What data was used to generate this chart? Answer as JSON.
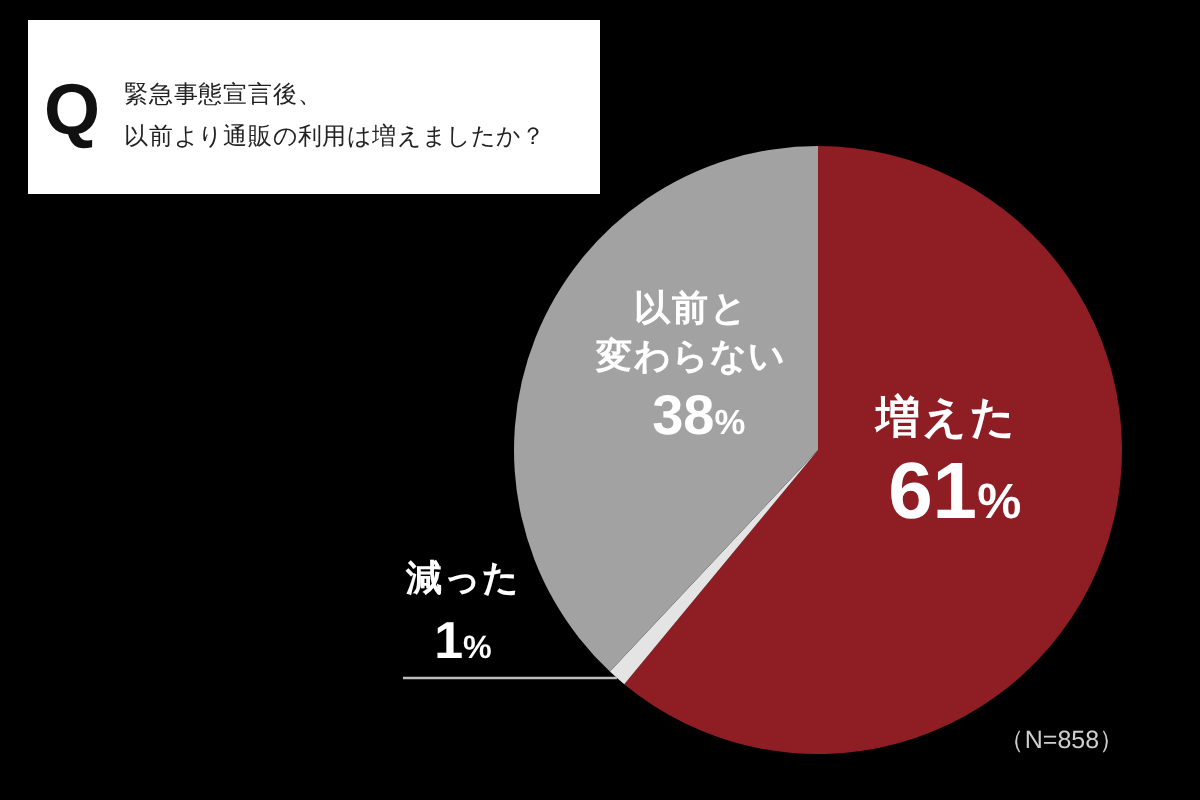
{
  "chart_data": {
    "type": "pie",
    "title": "緊急事態宣言後、以前より通販の利用は増えましたか？",
    "categories": [
      "増えた",
      "減った",
      "以前と変わらない"
    ],
    "values": [
      61,
      1,
      38
    ],
    "colors": [
      "#8e1d24",
      "#e4e4e4",
      "#a2a2a2"
    ],
    "value_labels": [
      "61%",
      "1%",
      "38%"
    ],
    "annotations": [
      "Q",
      "（N=858）"
    ]
  }
}
